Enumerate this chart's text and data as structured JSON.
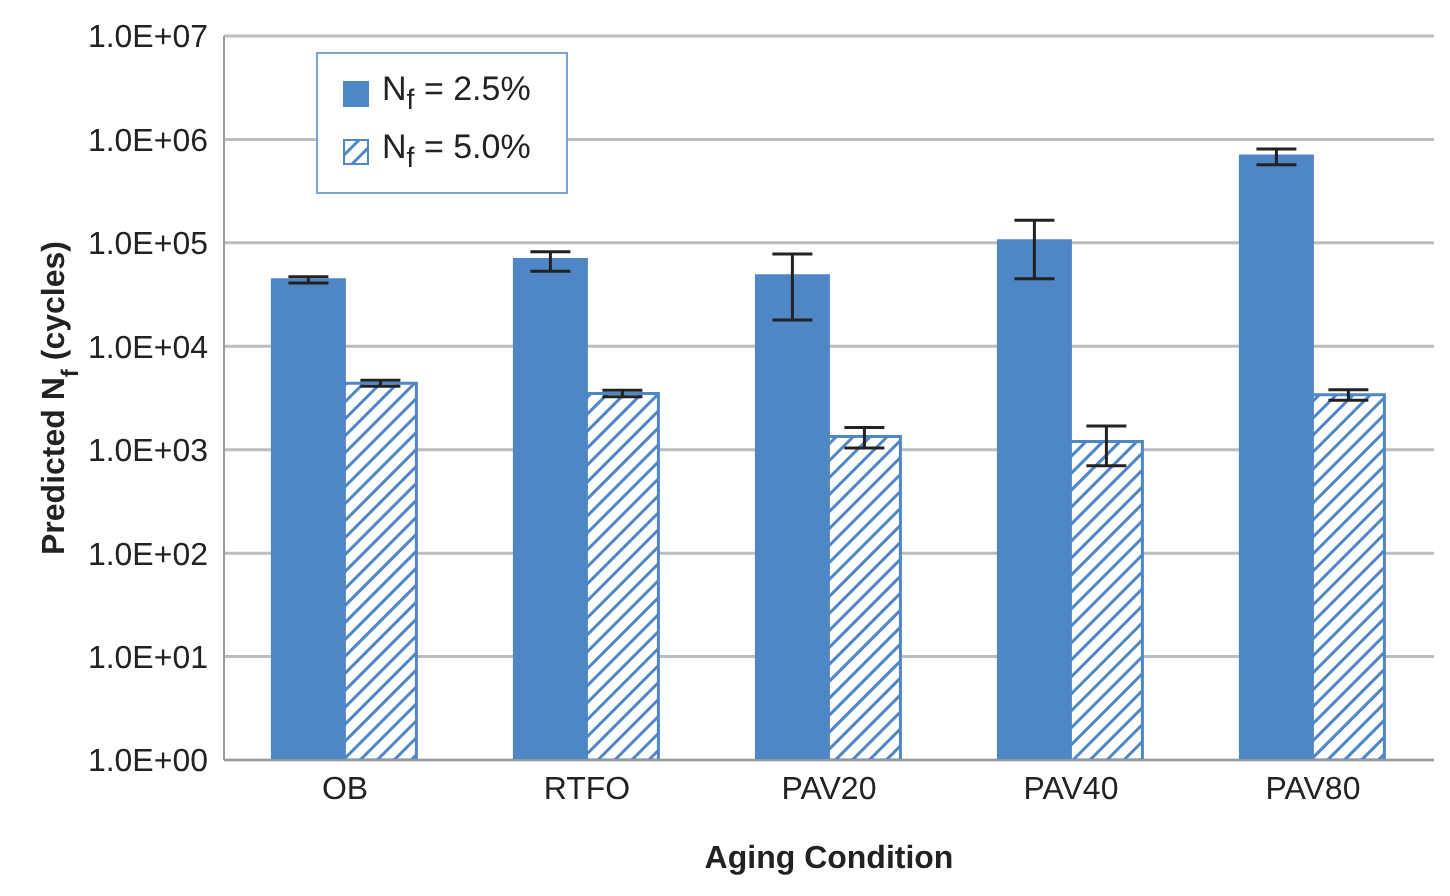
{
  "chart_data": {
    "type": "bar",
    "xlabel": "Aging Condition",
    "ylabel": "Predicted N$_{f}$ (cycles)",
    "categories": [
      "OB",
      "RTFO",
      "PAV20",
      "PAV40",
      "PAV80"
    ],
    "series": [
      {
        "name": "N$_{f}$ = 2.5%",
        "color": "#4f86c6",
        "values": [
          44000,
          69000,
          48000,
          105000,
          690000
        ],
        "errors": [
          3000,
          [
            53000,
            82000
          ],
          30000,
          60000,
          120000
        ]
      },
      {
        "name": "N$_{f}$ = 5.0%",
        "color": "#4f86c6",
        "values": [
          4400,
          3500,
          1340,
          1200,
          3400
        ],
        "errors": [
          300,
          250,
          300,
          500,
          400
        ]
      }
    ],
    "log": true,
    "ylim": [
      1,
      10000000
    ],
    "yticks": [
      {
        "value": 1,
        "label": "1.0E+00"
      },
      {
        "value": 10,
        "label": "1.0E+01"
      },
      {
        "value": 100,
        "label": "1.0E+02"
      },
      {
        "value": 1000,
        "label": "1.0E+03"
      },
      {
        "value": 10000,
        "label": "1.0E+04"
      },
      {
        "value": 100000,
        "label": "1.0E+05"
      },
      {
        "value": 1000000,
        "label": "1.0E+06"
      },
      {
        "value": 10000000,
        "label": "1.0E+07"
      }
    ],
    "grid": "y",
    "legend": "top left"
  }
}
